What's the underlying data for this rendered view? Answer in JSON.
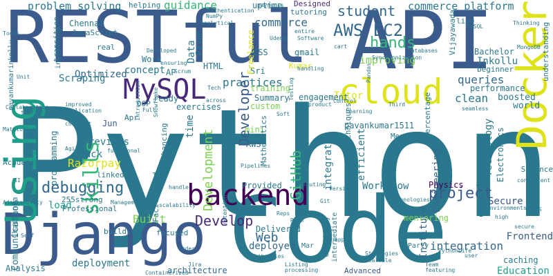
{
  "palette": {
    "slate_blue": "#3b5b8c",
    "teal": "#2a788e",
    "dark_purple": "#482878",
    "yellow": "#dde318",
    "green": "#35b779",
    "light_green": "#7ad151",
    "mid_teal": "#21918c",
    "deep_purple": "#440154",
    "ocean": "#31688e",
    "sea_green": "#1f9e89"
  },
  "words": [
    {
      "text": "Python"
    },
    {
      "text": "RESTful"
    },
    {
      "text": "API"
    },
    {
      "text": "Code"
    },
    {
      "text": "Django"
    },
    {
      "text": "Docker"
    },
    {
      "text": "cloud"
    },
    {
      "text": "backend"
    },
    {
      "text": "Using"
    },
    {
      "text": "MySQL"
    },
    {
      "text": "debugging"
    },
    {
      "text": "AWS EC2"
    },
    {
      "text": "student"
    },
    {
      "text": "commerce platform"
    },
    {
      "text": "problem solving"
    },
    {
      "text": "uptime"
    },
    {
      "text": "Designed"
    },
    {
      "text": "guidance"
    },
    {
      "text": "commerce"
    },
    {
      "text": "hands"
    },
    {
      "text": "improving"
    },
    {
      "text": "concept"
    },
    {
      "text": "Optimized"
    },
    {
      "text": "Scraping"
    },
    {
      "text": "practices"
    },
    {
      "text": "queries"
    },
    {
      "text": "clean"
    },
    {
      "text": "Data"
    },
    {
      "text": "time"
    },
    {
      "text": "Developer"
    },
    {
      "text": "Razorpay"
    },
    {
      "text": "reviews"
    },
    {
      "text": "Stack"
    },
    {
      "text": "linkedin"
    },
    {
      "text": "Develop"
    },
    {
      "text": "Development"
    },
    {
      "text": "GitHub"
    },
    {
      "text": "integrated"
    },
    {
      "text": "efficient"
    },
    {
      "text": "Engineering"
    },
    {
      "text": "project"
    },
    {
      "text": "Workflow"
    },
    {
      "text": "experience"
    },
    {
      "text": "integration"
    },
    {
      "text": "Frontend"
    },
    {
      "text": "caching"
    },
    {
      "text": "Education"
    },
    {
      "text": "Web"
    },
    {
      "text": "deployed"
    },
    {
      "text": "deployment"
    },
    {
      "text": "skills"
    },
    {
      "text": "Built"
    },
    {
      "text": "load"
    },
    {
      "text": "programming"
    },
    {
      "text": "Communication"
    },
    {
      "text": "Analysis"
    },
    {
      "text": "architecture"
    },
    {
      "text": "Advanced"
    },
    {
      "text": "Delivered"
    },
    {
      "text": "mentoring"
    },
    {
      "text": "Secure"
    },
    {
      "text": "Provided"
    },
    {
      "text": "Physics"
    },
    {
      "text": "Institute"
    },
    {
      "text": "pavankumar1511"
    },
    {
      "text": "Tutor"
    },
    {
      "text": "engagement"
    },
    {
      "text": "Summary"
    },
    {
      "text": "training"
    },
    {
      "text": "custom"
    },
    {
      "text": "exercises"
    },
    {
      "text": "ready"
    },
    {
      "text": "OOP"
    },
    {
      "text": "Apr"
    },
    {
      "text": "Jun"
    },
    {
      "text": "mini"
    },
    {
      "text": "AWS"
    },
    {
      "text": "Inkollu"
    },
    {
      "text": "Bachelor"
    },
    {
      "text": "beginner"
    },
    {
      "text": "performance"
    },
    {
      "text": "boosted"
    },
    {
      "text": "world"
    },
    {
      "text": "Science"
    },
    {
      "text": "Technology"
    },
    {
      "text": "Electronics"
    },
    {
      "text": "Sri"
    },
    {
      "text": "Pavan"
    },
    {
      "text": "real"
    },
    {
      "text": "Work"
    },
    {
      "text": "AP"
    },
    {
      "text": "HTML"
    },
    {
      "text": "CSS"
    },
    {
      "text": "gmail"
    },
    {
      "text": "Chennai"
    },
    {
      "text": "JavaScript"
    },
    {
      "text": "helping"
    },
    {
      "text": "Freelance"
    },
    {
      "text": "Kumar"
    },
    {
      "text": "tutoring"
    },
    {
      "text": "Vijayawada"
    },
    {
      "text": "live"
    },
    {
      "text": "Mathematics"
    },
    {
      "text": "Percentage"
    },
    {
      "text": "Mentored"
    },
    {
      "text": "Sathyabama"
    },
    {
      "text": "techniques"
    },
    {
      "text": "pavankumarinkollu"
    },
    {
      "text": "Chaitanya"
    },
    {
      "text": "Professional"
    },
    {
      "text": "focused"
    },
    {
      "text": "Facilitated"
    },
    {
      "text": "building"
    },
    {
      "text": "transition"
    },
    {
      "text": "instilling"
    },
    {
      "text": "Chemistry"
    },
    {
      "text": "intermediate"
    },
    {
      "text": "Party"
    },
    {
      "text": "Mar"
    },
    {
      "text": "PythonLife"
    },
    {
      "text": "Git"
    },
    {
      "text": "Repo"
    },
    {
      "text": "Jira"
    },
    {
      "text": "Pipelines"
    },
    {
      "text": "Academic"
    },
    {
      "text": "255strong"
    },
    {
      "text": "enhancing"
    },
    {
      "text": "Computing"
    },
    {
      "text": "Strategies"
    },
    {
      "text": "Scalable"
    },
    {
      "text": "Team"
    },
    {
      "text": "featuring"
    },
    {
      "text": "Listing"
    },
    {
      "text": "processing"
    },
    {
      "text": "Matplotlib"
    },
    {
      "text": "NumPy"
    },
    {
      "text": "Pandas"
    },
    {
      "text": "MongoDB"
    },
    {
      "text": "NoSQL"
    },
    {
      "text": "Thinking"
    },
    {
      "text": "Databases"
    },
    {
      "text": "Synchronization"
    },
    {
      "text": "cart"
    },
    {
      "text": "entire"
    },
    {
      "text": "Software"
    },
    {
      "text": "Udemy"
    },
    {
      "text": "authentication"
    },
    {
      "text": "payments"
    },
    {
      "text": "Analytical"
    },
    {
      "text": "Developed"
    },
    {
      "text": "ensuring"
    },
    {
      "text": "Collaboration"
    },
    {
      "text": "traffic"
    },
    {
      "text": "improved"
    },
    {
      "text": "application"
    },
    {
      "text": "checkout"
    },
    {
      "text": "functional"
    },
    {
      "text": "Agile"
    },
    {
      "text": "Adaptability"
    },
    {
      "text": "Management"
    },
    {
      "text": "scalability"
    },
    {
      "text": "Containerized"
    },
    {
      "text": "Libraries"
    },
    {
      "text": "Self"
    },
    {
      "text": "seamless"
    },
    {
      "text": "consistent"
    },
    {
      "text": "handle"
    },
    {
      "text": "Version"
    },
    {
      "text": "Technologies"
    },
    {
      "text": "environments"
    },
    {
      "text": "Third"
    },
    {
      "text": "Learning"
    },
    {
      "text": "Control"
    },
    {
      "text": "product"
    },
    {
      "text": "Testing"
    },
    {
      "text": "Soft"
    },
    {
      "text": "order"
    },
    {
      "text": "user"
    },
    {
      "text": "retention"
    },
    {
      "text": "high"
    },
    {
      "text": "app"
    },
    {
      "text": "Full"
    },
    {
      "text": "Tech"
    },
    {
      "text": "across"
    },
    {
      "text": "Unit"
    },
    {
      "text": "Snowflake"
    },
    {
      "text": "Scrum"
    },
    {
      "text": "introduction"
    },
    {
      "text": "understanding"
    },
    {
      "text": "handling"
    },
    {
      "text": "secure"
    },
    {
      "text": "CI"
    },
    {
      "text": "SI"
    },
    {
      "text": "OS"
    },
    {
      "text": "Tools"
    },
    {
      "text": "Reps"
    }
  ]
}
